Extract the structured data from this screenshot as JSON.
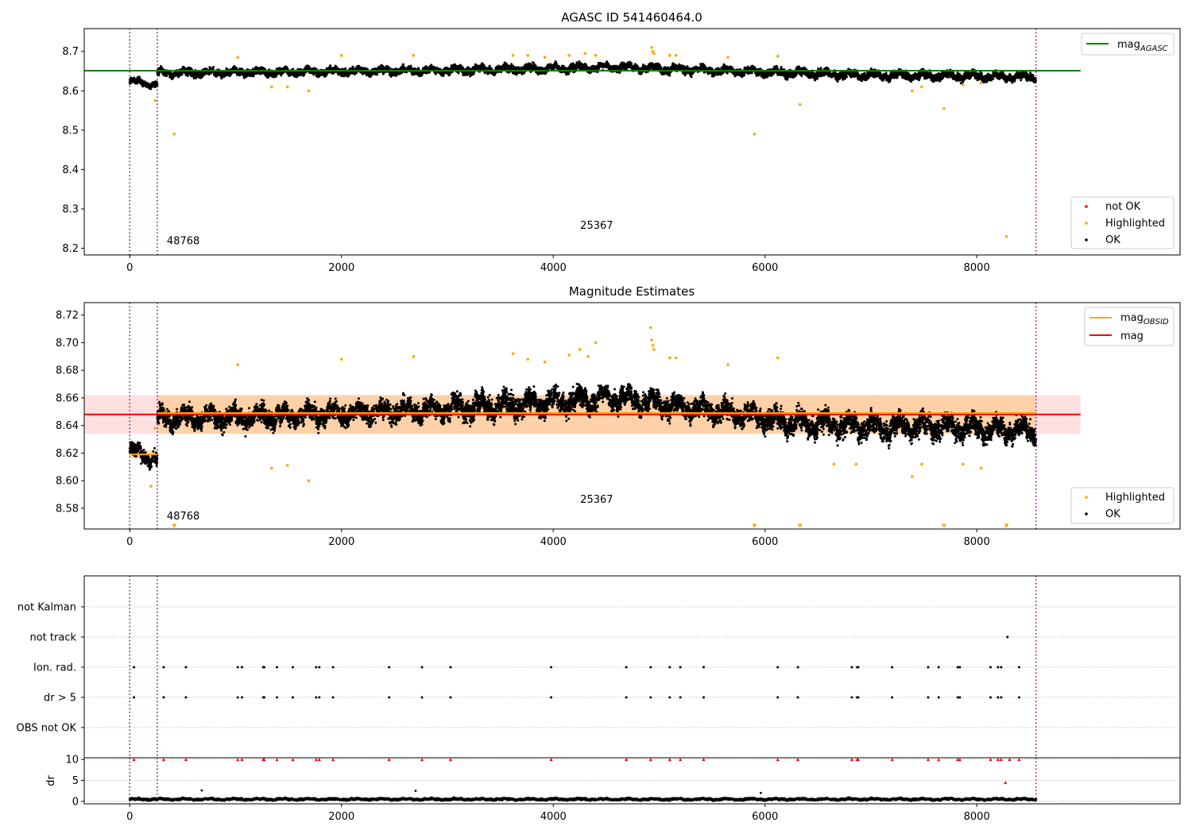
{
  "colors": {
    "ok": "#000000",
    "highlighted": "#ffa500",
    "not_ok": "#ff0000",
    "mag_agasc": "#008000",
    "mag": "#ff0000",
    "mag_obsid": "#ffa500",
    "band_mag": "#ff0000",
    "band_obsid": "#ffa500",
    "obs_boundary": "#800080",
    "grid": "#b0b0b0"
  },
  "chart_data": [
    {
      "type": "scatter",
      "title": "AGASC ID 541460464.0",
      "xlabel": "",
      "ylabel": "",
      "xlim": [
        -430,
        9920
      ],
      "ylim": [
        8.183,
        8.758
      ],
      "xticks": [
        0,
        2000,
        4000,
        6000,
        8000
      ],
      "yticks": [
        8.2,
        8.3,
        8.4,
        8.5,
        8.6,
        8.7
      ],
      "ytick_labels": [
        "8.2",
        "8.3",
        "8.4",
        "8.5",
        "8.6",
        "8.7"
      ],
      "grid": false,
      "obs_boundaries": [
        0,
        260,
        8560
      ],
      "obsids": [
        {
          "label": "48768",
          "x": 130,
          "y": 8.21
        },
        {
          "label": "25367",
          "x": 4410,
          "y": 8.25
        }
      ],
      "lines": [
        {
          "name": "mag_{AGASC}",
          "y": 8.651,
          "xrange": [
            -430,
            8980
          ],
          "color": "#008000"
        }
      ],
      "legends": [
        {
          "position": "upper-right",
          "items": [
            {
              "kind": "line",
              "label": "mag",
              "sub": "AGASC",
              "color": "#008000"
            }
          ]
        },
        {
          "position": "lower-right",
          "items": [
            {
              "kind": "dot",
              "label": "not OK",
              "color": "#ff0000"
            },
            {
              "kind": "dot",
              "label": "Highlighted",
              "color": "#ffa500"
            },
            {
              "kind": "dot",
              "label": "OK",
              "color": "#000000"
            }
          ]
        }
      ],
      "series": [
        {
          "name": "OK",
          "segments": [
            {
              "x": [
                0,
                260
              ],
              "y": [
                8.625,
                8.615
              ],
              "spread": 0.012
            },
            {
              "x": [
                260,
                1500
              ],
              "y": [
                8.645,
                8.648
              ],
              "spread": 0.014
            },
            {
              "x": [
                1500,
                3000
              ],
              "y": [
                8.648,
                8.652
              ],
              "spread": 0.014
            },
            {
              "x": [
                3000,
                4600
              ],
              "y": [
                8.652,
                8.66
              ],
              "spread": 0.015
            },
            {
              "x": [
                4600,
                6000
              ],
              "y": [
                8.66,
                8.648
              ],
              "spread": 0.015
            },
            {
              "x": [
                6000,
                7200
              ],
              "y": [
                8.648,
                8.638
              ],
              "spread": 0.016
            },
            {
              "x": [
                7200,
                8560
              ],
              "y": [
                8.64,
                8.635
              ],
              "spread": 0.015
            }
          ]
        },
        {
          "name": "Highlighted",
          "points": [
            [
              420,
              8.49
            ],
            [
              240,
              8.575
            ],
            [
              1340,
              8.61
            ],
            [
              1490,
              8.61
            ],
            [
              1690,
              8.6
            ],
            [
              1020,
              8.685
            ],
            [
              2000,
              8.69
            ],
            [
              2680,
              8.69
            ],
            [
              3620,
              8.69
            ],
            [
              3760,
              8.69
            ],
            [
              3920,
              8.685
            ],
            [
              4150,
              8.69
            ],
            [
              4300,
              8.695
            ],
            [
              4400,
              8.69
            ],
            [
              4930,
              8.71
            ],
            [
              4940,
              8.7
            ],
            [
              4950,
              8.695
            ],
            [
              5100,
              8.69
            ],
            [
              5160,
              8.69
            ],
            [
              5650,
              8.685
            ],
            [
              6120,
              8.688
            ],
            [
              5900,
              8.49
            ],
            [
              6330,
              8.565
            ],
            [
              7390,
              8.6
            ],
            [
              7480,
              8.61
            ],
            [
              7690,
              8.555
            ],
            [
              7870,
              8.615
            ],
            [
              8040,
              8.62
            ],
            [
              8280,
              8.23
            ]
          ]
        }
      ]
    },
    {
      "type": "scatter",
      "title": "Magnitude Estimates",
      "xlabel": "",
      "ylabel": "",
      "xlim": [
        -430,
        9920
      ],
      "ylim": [
        8.565,
        8.729
      ],
      "xticks": [
        0,
        2000,
        4000,
        6000,
        8000
      ],
      "yticks": [
        8.58,
        8.6,
        8.62,
        8.64,
        8.66,
        8.68,
        8.7,
        8.72
      ],
      "ytick_labels": [
        "8.58",
        "8.60",
        "8.62",
        "8.64",
        "8.66",
        "8.68",
        "8.70",
        "8.72"
      ],
      "grid": false,
      "obs_boundaries": [
        0,
        260,
        8560
      ],
      "obsids": [
        {
          "label": "48768",
          "x": 130,
          "y": 8.572
        },
        {
          "label": "25367",
          "x": 4410,
          "y": 8.584
        }
      ],
      "lines": [
        {
          "name": "mag",
          "y": 8.648,
          "xrange": [
            -430,
            8980
          ],
          "color": "#ff0000"
        },
        {
          "name": "mag_{OBSID}",
          "y": 8.619,
          "xrange": [
            0,
            260
          ],
          "color": "#ffa500"
        },
        {
          "name": "mag_{OBSID}",
          "y": 8.649,
          "xrange": [
            260,
            8560
          ],
          "color": "#ffa500"
        }
      ],
      "bands": [
        {
          "ymin": 8.634,
          "ymax": 8.662,
          "xrange": [
            -430,
            8980
          ],
          "color": "#ff0000",
          "opacity": 0.12
        },
        {
          "ymin": 8.634,
          "ymax": 8.662,
          "xrange": [
            260,
            8560
          ],
          "color": "#ffa500",
          "opacity": 0.25
        },
        {
          "ymin": 8.616,
          "ymax": 8.622,
          "xrange": [
            0,
            260
          ],
          "color": "#ffa500",
          "opacity": 0.35
        }
      ],
      "legends": [
        {
          "position": "upper-right",
          "items": [
            {
              "kind": "line",
              "label": "mag",
              "sub": "OBSID",
              "color": "#ffa500"
            },
            {
              "kind": "line",
              "label": "mag",
              "sub": "",
              "color": "#ff0000"
            }
          ]
        },
        {
          "position": "lower-right",
          "items": [
            {
              "kind": "dot",
              "label": "Highlighted",
              "color": "#ffa500"
            },
            {
              "kind": "dot",
              "label": "OK",
              "color": "#000000"
            }
          ]
        }
      ],
      "series": [
        {
          "name": "OK",
          "segments": [
            {
              "x": [
                0,
                260
              ],
              "y": [
                8.622,
                8.615
              ],
              "spread": 0.008
            },
            {
              "x": [
                260,
                1500
              ],
              "y": [
                8.645,
                8.647
              ],
              "spread": 0.011
            },
            {
              "x": [
                1500,
                3000
              ],
              "y": [
                8.647,
                8.652
              ],
              "spread": 0.011
            },
            {
              "x": [
                3000,
                4600
              ],
              "y": [
                8.652,
                8.66
              ],
              "spread": 0.013
            },
            {
              "x": [
                4600,
                6000
              ],
              "y": [
                8.66,
                8.646
              ],
              "spread": 0.012
            },
            {
              "x": [
                6000,
                7200
              ],
              "y": [
                8.644,
                8.638
              ],
              "spread": 0.013
            },
            {
              "x": [
                7200,
                8560
              ],
              "y": [
                8.64,
                8.636
              ],
              "spread": 0.012
            }
          ]
        },
        {
          "name": "Highlighted",
          "points": [
            [
              420,
              8.567
            ],
            [
              200,
              8.596
            ],
            [
              240,
              8.638
            ],
            [
              1340,
              8.609
            ],
            [
              1490,
              8.611
            ],
            [
              1690,
              8.6
            ],
            [
              1020,
              8.684
            ],
            [
              2000,
              8.688
            ],
            [
              2680,
              8.69
            ],
            [
              3620,
              8.692
            ],
            [
              3760,
              8.688
            ],
            [
              3920,
              8.686
            ],
            [
              4150,
              8.691
            ],
            [
              4250,
              8.695
            ],
            [
              4330,
              8.69
            ],
            [
              4400,
              8.7
            ],
            [
              4920,
              8.711
            ],
            [
              4930,
              8.702
            ],
            [
              4940,
              8.698
            ],
            [
              4950,
              8.695
            ],
            [
              5100,
              8.689
            ],
            [
              5160,
              8.689
            ],
            [
              5650,
              8.684
            ],
            [
              6120,
              8.689
            ],
            [
              5900,
              8.567
            ],
            [
              6330,
              8.567
            ],
            [
              6650,
              8.612
            ],
            [
              6860,
              8.612
            ],
            [
              7390,
              8.603
            ],
            [
              7480,
              8.612
            ],
            [
              7690,
              8.567
            ],
            [
              7870,
              8.612
            ],
            [
              8040,
              8.609
            ],
            [
              8280,
              8.567
            ]
          ]
        }
      ]
    },
    {
      "type": "scatter",
      "title": "",
      "xlabel": "",
      "ylabel": "",
      "xlim": [
        -430,
        9920
      ],
      "categories": [
        "not Kalman",
        "not track",
        "Ion. rad.",
        "dr > 5",
        "OBS not OK"
      ],
      "grid": true,
      "obs_boundaries": [
        0,
        260,
        8560
      ],
      "flags": {
        "Ion. rad.": [
          40,
          320,
          530,
          1020,
          1060,
          1260,
          1270,
          1390,
          1540,
          1760,
          1790,
          1920,
          2450,
          2760,
          3030,
          3980,
          4690,
          4920,
          5100,
          5200,
          5420,
          6120,
          6310,
          6820,
          6870,
          6880,
          7200,
          7540,
          7640,
          7820,
          7840,
          8130,
          8200,
          8230,
          8400
        ],
        "dr > 5": [
          40,
          320,
          530,
          1020,
          1060,
          1260,
          1270,
          1390,
          1540,
          1760,
          1790,
          1920,
          2450,
          2760,
          3030,
          3980,
          4690,
          4920,
          5100,
          5200,
          5420,
          6120,
          6310,
          6820,
          6870,
          6880,
          7200,
          7540,
          7640,
          7820,
          7840,
          8130,
          8200,
          8230,
          8400
        ],
        "not track": [
          8290
        ]
      }
    },
    {
      "type": "scatter",
      "title": "",
      "xlabel": "",
      "ylabel": "dr",
      "xlim": [
        -430,
        9920
      ],
      "ylim": [
        -0.6,
        10.4
      ],
      "xticks": [
        0,
        2000,
        4000,
        6000,
        8000
      ],
      "yticks": [
        0,
        5,
        10
      ],
      "ytick_labels": [
        "0",
        "5",
        "10"
      ],
      "grid": true,
      "obs_boundaries": [
        0,
        260,
        8560
      ],
      "series": [
        {
          "name": "OK",
          "segments": [
            {
              "x": [
                0,
                8560
              ],
              "y": [
                0.5,
                0.5
              ],
              "spread": 0.35
            }
          ],
          "extra_points": [
            [
              680,
              2.6
            ],
            [
              2700,
              2.5
            ],
            [
              5960,
              2.0
            ]
          ]
        },
        {
          "name": "not OK",
          "points": [
            [
              40,
              10
            ],
            [
              320,
              10
            ],
            [
              530,
              10
            ],
            [
              1020,
              10
            ],
            [
              1060,
              10
            ],
            [
              1260,
              10
            ],
            [
              1270,
              10
            ],
            [
              1390,
              10
            ],
            [
              1540,
              10
            ],
            [
              1760,
              10
            ],
            [
              1790,
              10
            ],
            [
              1920,
              10
            ],
            [
              2450,
              10
            ],
            [
              2760,
              10
            ],
            [
              3030,
              10
            ],
            [
              3980,
              10
            ],
            [
              4690,
              10
            ],
            [
              4920,
              10
            ],
            [
              5100,
              10
            ],
            [
              5200,
              10
            ],
            [
              5420,
              10
            ],
            [
              6120,
              10
            ],
            [
              6310,
              10
            ],
            [
              6820,
              10
            ],
            [
              6870,
              10
            ],
            [
              6880,
              10
            ],
            [
              7200,
              10
            ],
            [
              7540,
              10
            ],
            [
              7640,
              10
            ],
            [
              7820,
              10
            ],
            [
              7840,
              10
            ],
            [
              8130,
              10
            ],
            [
              8200,
              10
            ],
            [
              8230,
              10
            ],
            [
              8310,
              10
            ],
            [
              8400,
              10
            ],
            [
              8270,
              4.5
            ]
          ]
        }
      ]
    }
  ]
}
